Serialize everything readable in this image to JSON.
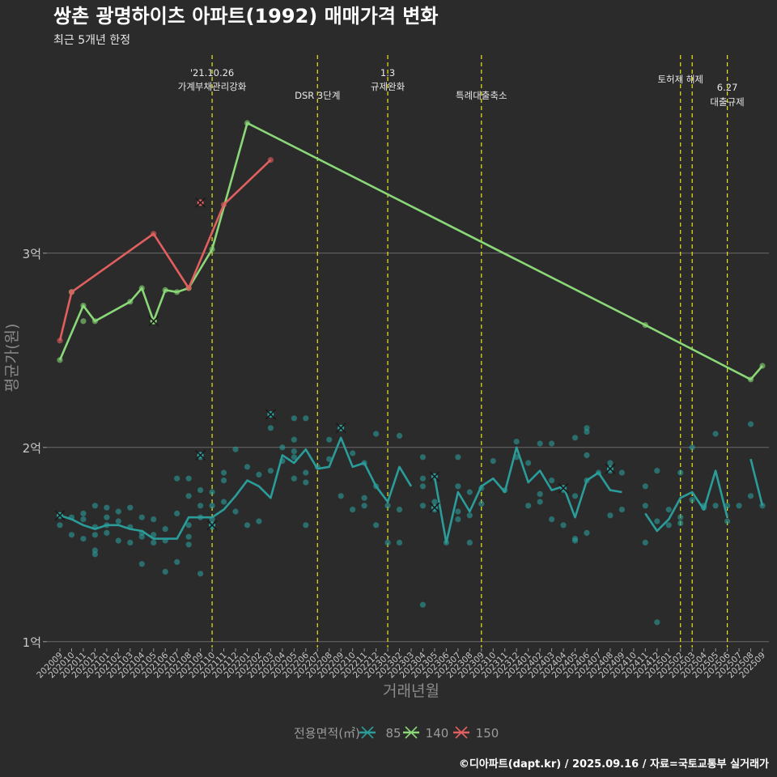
{
  "chart_data": {
    "type": "line",
    "title": "쌍촌 광명하이츠 아파트(1992) 매매가격 변화",
    "subtitle": "최근 5개년 한정",
    "xlabel": "거래년월",
    "ylabel": "평균가(원)",
    "caption": "©디아파트(dapt.kr) / 2025.09.16 / 자료=국토교통부 실거래가",
    "ylim": [
      0.97,
      4.02
    ],
    "yticks": [
      {
        "value": 1,
        "label": "1억"
      },
      {
        "value": 2,
        "label": "2억"
      },
      {
        "value": 3,
        "label": "3억"
      }
    ],
    "grid": "horizontal",
    "legend_title": "전용면적(㎡)",
    "legend_position": "bottom",
    "months": [
      "202009",
      "202010",
      "202011",
      "202012",
      "202101",
      "202102",
      "202103",
      "202104",
      "202105",
      "202106",
      "202107",
      "202108",
      "202109",
      "202110",
      "202111",
      "202112",
      "202201",
      "202202",
      "202203",
      "202204",
      "202205",
      "202206",
      "202207",
      "202208",
      "202209",
      "202210",
      "202211",
      "202212",
      "202301",
      "202302",
      "202303",
      "202304",
      "202305",
      "202306",
      "202307",
      "202308",
      "202309",
      "202310",
      "202311",
      "202312",
      "202401",
      "202402",
      "202403",
      "202404",
      "202405",
      "202406",
      "202407",
      "202408",
      "202409",
      "202410",
      "202411",
      "202412",
      "202501",
      "202502",
      "202503",
      "202504",
      "202505",
      "202506",
      "202507",
      "202508",
      "202509"
    ],
    "events": [
      {
        "month": "202110",
        "lines": [
          "'21.10.26",
          "가계부채관리강화"
        ]
      },
      {
        "month": "202207",
        "lines": [
          "DSR 3단계"
        ]
      },
      {
        "month": "202301",
        "lines": [
          "1.3",
          "규제완화"
        ]
      },
      {
        "month": "202309",
        "lines": [
          "특례대출축소"
        ]
      },
      {
        "month": "202502",
        "lines": [
          "토허제 해제"
        ]
      },
      {
        "month": "202503",
        "lines": []
      },
      {
        "month": "202506",
        "lines": [
          "6.27",
          "대출규제"
        ]
      }
    ],
    "series": [
      {
        "name": "85",
        "color": "#2a9d9a",
        "line": [
          1.65,
          1.63,
          1.6,
          1.58,
          1.6,
          1.6,
          1.58,
          1.57,
          1.53,
          1.53,
          1.53,
          1.64,
          1.64,
          1.64,
          1.68,
          1.75,
          1.83,
          1.8,
          1.74,
          1.96,
          1.92,
          1.99,
          1.89,
          1.9,
          2.05,
          1.9,
          1.92,
          1.8,
          1.72,
          1.9,
          1.8,
          null,
          1.85,
          1.51,
          1.77,
          1.67,
          1.8,
          1.84,
          1.77,
          2.0,
          1.82,
          1.88,
          1.78,
          1.8,
          1.64,
          1.83,
          1.87,
          1.78,
          1.77,
          null,
          1.66,
          1.57,
          1.63,
          1.74,
          1.77,
          1.68,
          1.88,
          1.64,
          null,
          1.94,
          1.7
        ],
        "points": [
          [
            0,
            1.65
          ],
          [
            0,
            1.6
          ],
          [
            1,
            1.64
          ],
          [
            1,
            1.55
          ],
          [
            2,
            1.63
          ],
          [
            2,
            1.53
          ],
          [
            2,
            1.66
          ],
          [
            3,
            1.59
          ],
          [
            3,
            1.47
          ],
          [
            3,
            1.7
          ],
          [
            3,
            1.55
          ],
          [
            3,
            1.45
          ],
          [
            4,
            1.69
          ],
          [
            4,
            1.56
          ],
          [
            4,
            1.64
          ],
          [
            4,
            1.6
          ],
          [
            5,
            1.52
          ],
          [
            5,
            1.67
          ],
          [
            5,
            1.62
          ],
          [
            6,
            1.51
          ],
          [
            6,
            1.59
          ],
          [
            6,
            1.69
          ],
          [
            7,
            1.56
          ],
          [
            7,
            1.64
          ],
          [
            7,
            1.4
          ],
          [
            7,
            1.54
          ],
          [
            8,
            1.55
          ],
          [
            8,
            1.51
          ],
          [
            8,
            1.63
          ],
          [
            9,
            1.52
          ],
          [
            9,
            1.36
          ],
          [
            9,
            1.58
          ],
          [
            10,
            1.41
          ],
          [
            10,
            1.84
          ],
          [
            10,
            1.66
          ],
          [
            11,
            1.84
          ],
          [
            11,
            1.6
          ],
          [
            11,
            1.54
          ],
          [
            11,
            1.5
          ],
          [
            11,
            1.75
          ],
          [
            12,
            1.7
          ],
          [
            12,
            1.64
          ],
          [
            12,
            1.95
          ],
          [
            12,
            1.78
          ],
          [
            12,
            1.35
          ],
          [
            13,
            1.59
          ],
          [
            13,
            1.7
          ],
          [
            13,
            1.77
          ],
          [
            13,
            1.63
          ],
          [
            14,
            1.72
          ],
          [
            14,
            1.87
          ],
          [
            14,
            1.83
          ],
          [
            15,
            1.99
          ],
          [
            15,
            1.67
          ],
          [
            16,
            1.9
          ],
          [
            16,
            1.6
          ],
          [
            17,
            1.62
          ],
          [
            17,
            1.86
          ],
          [
            18,
            2.17
          ],
          [
            18,
            2.1
          ],
          [
            18,
            1.88
          ],
          [
            19,
            1.93
          ],
          [
            19,
            2.0
          ],
          [
            20,
            2.04
          ],
          [
            20,
            1.98
          ],
          [
            20,
            2.15
          ],
          [
            20,
            1.95
          ],
          [
            20,
            1.84
          ],
          [
            21,
            2.15
          ],
          [
            21,
            1.82
          ],
          [
            21,
            1.87
          ],
          [
            21,
            1.6
          ],
          [
            22,
            1.9
          ],
          [
            23,
            1.94
          ],
          [
            23,
            2.04
          ],
          [
            24,
            1.75
          ],
          [
            24,
            2.1
          ],
          [
            25,
            1.97
          ],
          [
            25,
            1.68
          ],
          [
            26,
            1.7
          ],
          [
            26,
            1.74
          ],
          [
            26,
            1.92
          ],
          [
            27,
            2.07
          ],
          [
            27,
            1.8
          ],
          [
            27,
            1.6
          ],
          [
            28,
            1.51
          ],
          [
            28,
            1.7
          ],
          [
            29,
            2.06
          ],
          [
            29,
            1.68
          ],
          [
            29,
            1.51
          ],
          [
            31,
            1.95
          ],
          [
            31,
            1.84
          ],
          [
            31,
            1.19
          ],
          [
            31,
            1.7
          ],
          [
            31,
            1.8
          ],
          [
            32,
            1.72
          ],
          [
            32,
            1.68
          ],
          [
            32,
            1.85
          ],
          [
            33,
            1.51
          ],
          [
            34,
            1.95
          ],
          [
            34,
            1.67
          ],
          [
            34,
            1.8
          ],
          [
            34,
            1.63
          ],
          [
            35,
            1.51
          ],
          [
            35,
            1.77
          ],
          [
            35,
            1.65
          ],
          [
            36,
            1.71
          ],
          [
            36,
            1.79
          ],
          [
            37,
            1.93
          ],
          [
            38,
            1.78
          ],
          [
            39,
            2.03
          ],
          [
            39,
            1.95
          ],
          [
            40,
            1.92
          ],
          [
            40,
            1.7
          ],
          [
            41,
            2.02
          ],
          [
            41,
            1.72
          ],
          [
            41,
            1.76
          ],
          [
            42,
            1.63
          ],
          [
            42,
            2.02
          ],
          [
            42,
            1.83
          ],
          [
            43,
            1.78
          ],
          [
            43,
            1.6
          ],
          [
            44,
            1.75
          ],
          [
            44,
            2.05
          ],
          [
            44,
            1.53
          ],
          [
            44,
            1.52
          ],
          [
            45,
            2.08
          ],
          [
            45,
            1.96
          ],
          [
            45,
            2.1
          ],
          [
            45,
            1.83
          ],
          [
            45,
            1.56
          ],
          [
            46,
            1.87
          ],
          [
            47,
            1.88
          ],
          [
            47,
            1.65
          ],
          [
            47,
            1.92
          ],
          [
            48,
            1.87
          ],
          [
            48,
            1.68
          ],
          [
            50,
            1.51
          ],
          [
            50,
            1.8
          ],
          [
            50,
            1.7
          ],
          [
            51,
            1.62
          ],
          [
            51,
            1.1
          ],
          [
            51,
            1.88
          ],
          [
            52,
            1.6
          ],
          [
            52,
            1.68
          ],
          [
            53,
            1.64
          ],
          [
            53,
            1.87
          ],
          [
            53,
            1.61
          ],
          [
            54,
            1.73
          ],
          [
            54,
            2.0
          ],
          [
            55,
            1.69
          ],
          [
            55,
            1.7
          ],
          [
            56,
            2.07
          ],
          [
            56,
            1.7
          ],
          [
            57,
            1.62
          ],
          [
            57,
            1.7
          ],
          [
            58,
            1.7
          ],
          [
            59,
            1.75
          ],
          [
            59,
            2.12
          ],
          [
            60,
            1.7
          ]
        ],
        "marked": [
          [
            0,
            1.65
          ],
          [
            12,
            1.96
          ],
          [
            13,
            1.6
          ],
          [
            18,
            2.17
          ],
          [
            24,
            2.1
          ],
          [
            32,
            1.85
          ],
          [
            32,
            1.69
          ],
          [
            43,
            1.79
          ],
          [
            47,
            1.89
          ]
        ]
      },
      {
        "name": "140",
        "color": "#8ad877",
        "line": [
          2.45,
          null,
          2.73,
          2.65,
          null,
          null,
          2.75,
          2.82,
          2.65,
          2.81,
          2.8,
          2.82,
          null,
          3.02,
          null,
          null,
          3.67,
          null,
          null,
          null,
          null,
          null,
          null,
          null,
          null,
          null,
          null,
          null,
          null,
          null,
          null,
          null,
          null,
          null,
          null,
          null,
          null,
          null,
          null,
          null,
          null,
          null,
          null,
          null,
          null,
          null,
          null,
          null,
          null,
          null,
          2.63,
          null,
          null,
          null,
          null,
          null,
          null,
          null,
          null,
          2.35,
          2.42
        ],
        "points": [
          [
            0,
            2.45
          ],
          [
            1,
            2.8
          ],
          [
            2,
            2.73
          ],
          [
            2,
            2.65
          ],
          [
            3,
            2.65
          ],
          [
            6,
            2.75
          ],
          [
            7,
            2.82
          ],
          [
            8,
            2.65
          ],
          [
            9,
            2.81
          ],
          [
            10,
            2.8
          ],
          [
            11,
            2.82
          ],
          [
            13,
            3.02
          ],
          [
            16,
            3.67
          ],
          [
            50,
            2.63
          ],
          [
            59,
            2.35
          ],
          [
            60,
            2.42
          ]
        ],
        "marked": [
          [
            8,
            2.65
          ]
        ]
      },
      {
        "name": "150",
        "color": "#e25f5f",
        "line": [
          2.55,
          2.8,
          null,
          null,
          null,
          null,
          null,
          null,
          3.1,
          null,
          null,
          2.82,
          null,
          null,
          3.25,
          null,
          null,
          null,
          3.48,
          null,
          null,
          null,
          null,
          null,
          null,
          null,
          null,
          null,
          null,
          null,
          null,
          null,
          null,
          null,
          null,
          null,
          null,
          null,
          null,
          null,
          null,
          null,
          null,
          null,
          null,
          null,
          null,
          null,
          null,
          null,
          null,
          null,
          null,
          null,
          null,
          null,
          null,
          null,
          null,
          null,
          null
        ],
        "points": [
          [
            0,
            2.55
          ],
          [
            1,
            2.8
          ],
          [
            8,
            3.1
          ],
          [
            11,
            2.82
          ],
          [
            14,
            3.25
          ],
          [
            18,
            3.48
          ]
        ],
        "marked": [
          [
            12,
            3.26
          ]
        ]
      }
    ]
  }
}
